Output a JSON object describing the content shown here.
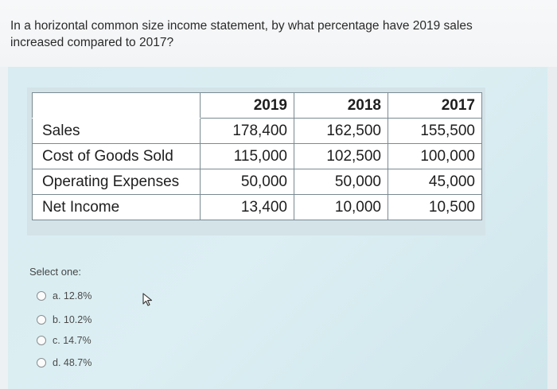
{
  "question": {
    "text": "In a horizontal common size income statement, by what percentage have 2019 sales increased compared to 2017?"
  },
  "table": {
    "headers": [
      "",
      "2019",
      "2018",
      "2017"
    ],
    "rows": [
      {
        "label": "Sales",
        "values": [
          "178,400",
          "162,500",
          "155,500"
        ]
      },
      {
        "label": "Cost of Goods Sold",
        "values": [
          "115,000",
          "102,500",
          "100,000"
        ]
      },
      {
        "label": "Operating Expenses",
        "values": [
          "50,000",
          "50,000",
          "45,000"
        ]
      },
      {
        "label": "Net Income",
        "values": [
          "13,400",
          "10,000",
          "10,500"
        ]
      }
    ]
  },
  "answer": {
    "select_label": "Select one:",
    "options": [
      {
        "label": "a. 12.8%"
      },
      {
        "label": "b. 10.2%"
      },
      {
        "label": "c. 14.7%"
      },
      {
        "label": "d. 48.7%"
      }
    ]
  }
}
